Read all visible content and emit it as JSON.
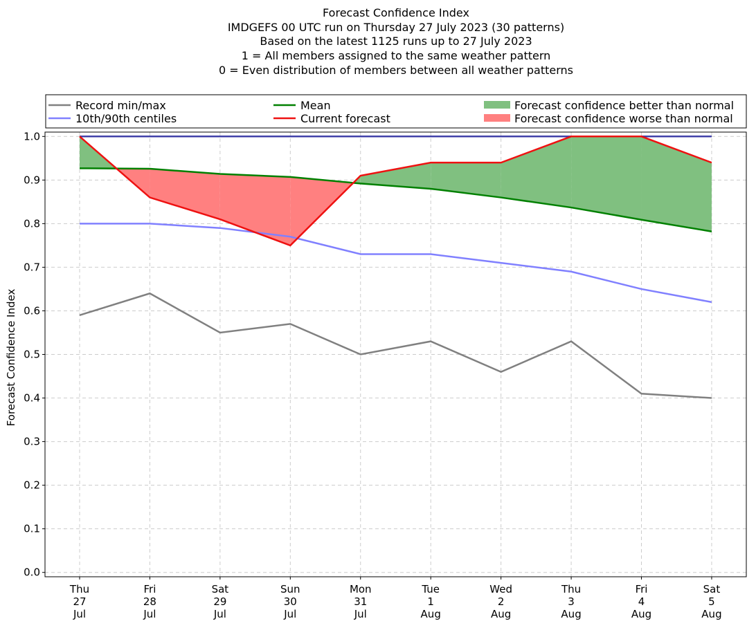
{
  "chart_data": {
    "type": "line",
    "title_lines": [
      "Forecast Confidence Index",
      "IMDGEFS 00 UTC run on Thursday 27 July 2023 (30 patterns)",
      "Based on the latest 1125 runs up to 27 July 2023",
      "1 = All members assigned to the same weather pattern",
      "0 = Even distribution of members between all weather patterns"
    ],
    "ylabel": "Forecast Confidence Index",
    "xlabel": "",
    "ylim": [
      -0.01,
      1.01
    ],
    "yticks": [
      "0.0",
      "0.1",
      "0.2",
      "0.3",
      "0.4",
      "0.5",
      "0.6",
      "0.7",
      "0.8",
      "0.9",
      "1.0"
    ],
    "categories": [
      [
        "Thu",
        "27",
        "Jul"
      ],
      [
        "Fri",
        "28",
        "Jul"
      ],
      [
        "Sat",
        "29",
        "Jul"
      ],
      [
        "Sun",
        "30",
        "Jul"
      ],
      [
        "Mon",
        "31",
        "Jul"
      ],
      [
        "Tue",
        "1",
        "Aug"
      ],
      [
        "Wed",
        "2",
        "Aug"
      ],
      [
        "Thu",
        "3",
        "Aug"
      ],
      [
        "Fri",
        "4",
        "Aug"
      ],
      [
        "Sat",
        "5",
        "Aug"
      ]
    ],
    "grid": true,
    "legend_placement": "top, above plot",
    "legend": {
      "record": "Record min/max",
      "centiles": "10th/90th centiles",
      "mean": "Mean",
      "current": "Current forecast",
      "better": "Forecast confidence better than normal",
      "worse": "Forecast confidence worse than normal"
    },
    "series": {
      "record_min": [
        0.59,
        0.64,
        0.55,
        0.57,
        0.5,
        0.53,
        0.46,
        0.53,
        0.41,
        0.4
      ],
      "record_max": [
        1.0,
        1.0,
        1.0,
        1.0,
        1.0,
        1.0,
        1.0,
        1.0,
        1.0,
        1.0
      ],
      "p10": [
        0.8,
        0.8,
        0.79,
        0.77,
        0.73,
        0.73,
        0.71,
        0.69,
        0.65,
        0.62
      ],
      "p90": [
        1.0,
        1.0,
        1.0,
        1.0,
        1.0,
        1.0,
        1.0,
        1.0,
        1.0,
        1.0
      ],
      "mean": [
        0.927,
        0.926,
        0.914,
        0.907,
        0.892,
        0.88,
        0.86,
        0.837,
        0.809,
        0.782
      ],
      "current": [
        1.0,
        0.86,
        0.81,
        0.75,
        0.91,
        0.94,
        0.94,
        1.0,
        1.0,
        0.94
      ]
    },
    "colors": {
      "record": "#808080",
      "centiles": "#8080ff",
      "centiles_top": "#4040a8",
      "mean": "#008000",
      "current": "#ee1111",
      "better_fill": "#80c080",
      "worse_fill": "#ff8080",
      "grid": "#cccccc"
    }
  }
}
